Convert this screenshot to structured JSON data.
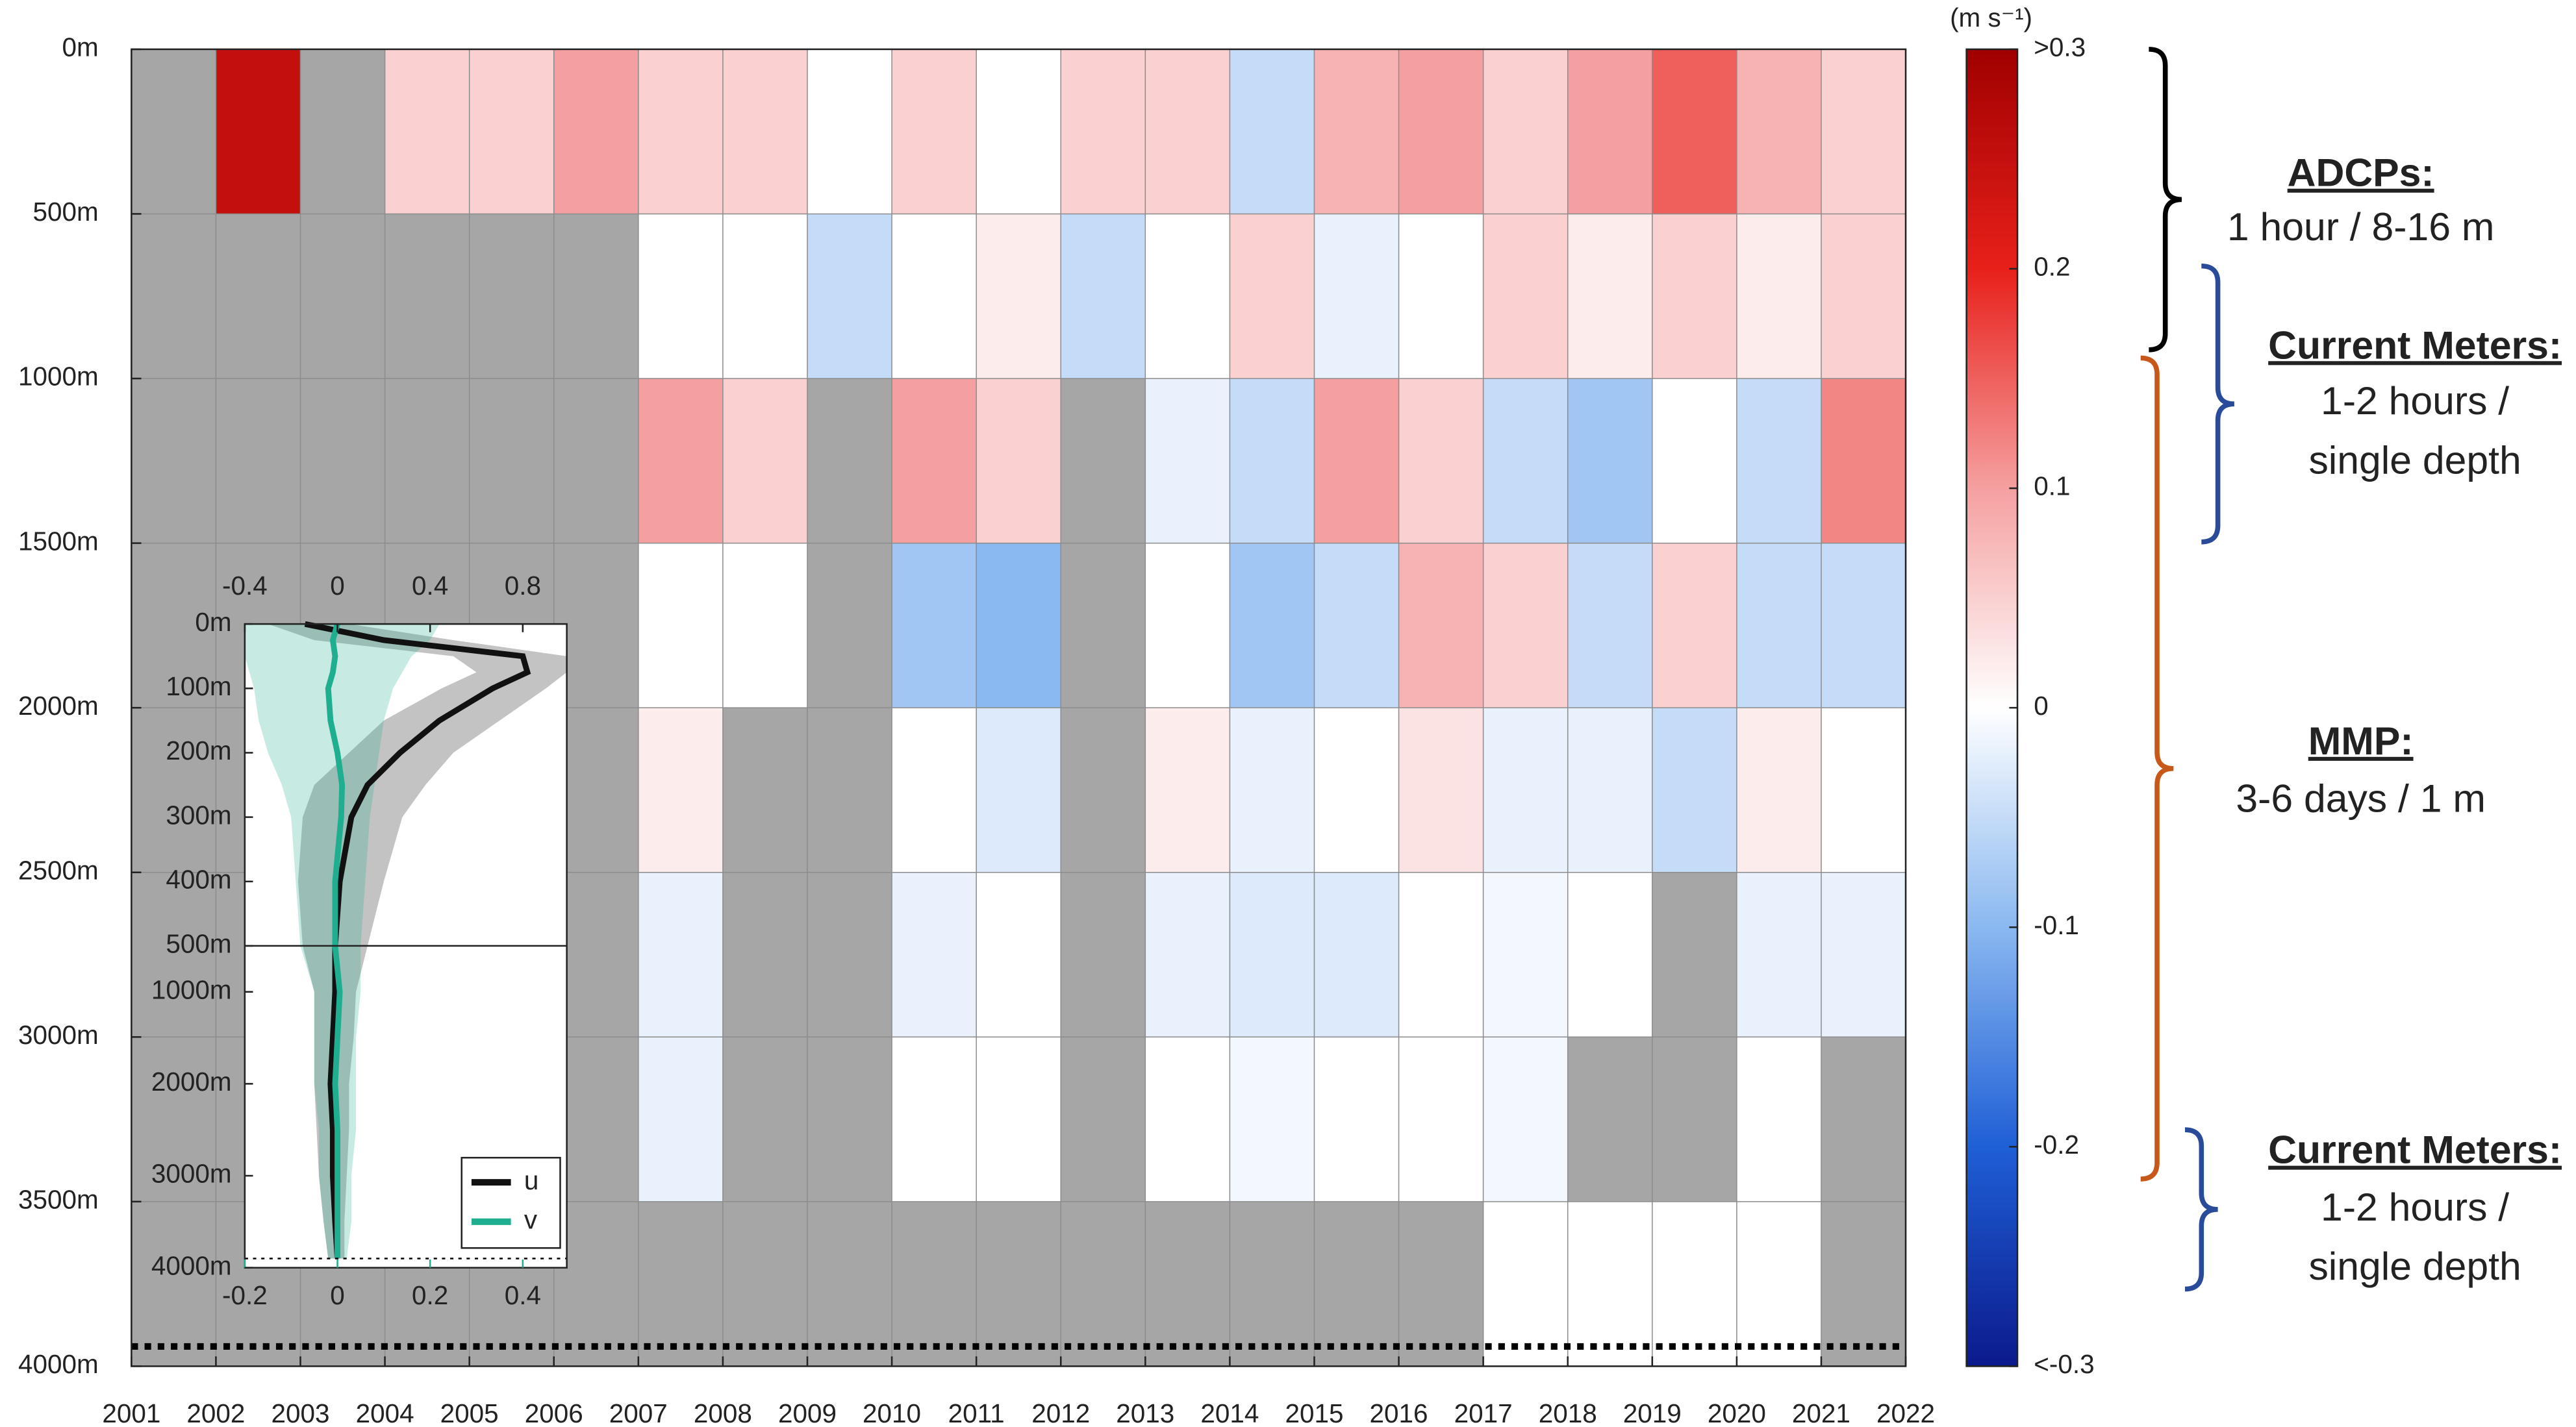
{
  "chart_data": [
    {
      "type": "heatmap",
      "x_edges": [
        2001,
        2002,
        2003,
        2004,
        2005,
        2006,
        2007,
        2008,
        2009,
        2010,
        2011,
        2012,
        2013,
        2014,
        2015,
        2016,
        2017,
        2018,
        2019,
        2020,
        2021,
        2022
      ],
      "y_edges": [
        0,
        500,
        1000,
        1500,
        2000,
        2500,
        3000,
        3500,
        4000
      ],
      "values": [
        [
          null,
          0.25,
          null,
          0.05,
          0.05,
          0.1,
          0.05,
          0.05,
          0,
          0.05,
          0,
          0.05,
          0.05,
          -0.05,
          0.08,
          0.1,
          0.05,
          0.1,
          0.15,
          0.08,
          0.05
        ],
        [
          null,
          null,
          null,
          null,
          null,
          null,
          0,
          0,
          -0.05,
          0,
          0.02,
          -0.05,
          0,
          0.05,
          -0.02,
          0,
          0.05,
          0.02,
          0.05,
          0.02,
          0.05
        ],
        [
          null,
          null,
          null,
          null,
          null,
          null,
          0.1,
          0.05,
          null,
          0.1,
          0.05,
          null,
          -0.02,
          -0.05,
          0.1,
          0.05,
          -0.05,
          -0.08,
          0,
          -0.05,
          0.12
        ],
        [
          null,
          null,
          null,
          null,
          null,
          null,
          0,
          0,
          null,
          -0.08,
          -0.1,
          null,
          0,
          -0.08,
          -0.05,
          0.08,
          0.05,
          -0.05,
          0.05,
          -0.05,
          -0.05
        ],
        [
          null,
          null,
          null,
          null,
          null,
          null,
          0.02,
          null,
          null,
          0,
          -0.03,
          null,
          0.02,
          -0.02,
          0,
          0.03,
          -0.02,
          -0.02,
          -0.05,
          0.02,
          0
        ],
        [
          null,
          null,
          null,
          null,
          null,
          null,
          -0.02,
          null,
          null,
          -0.02,
          0,
          null,
          -0.02,
          -0.03,
          -0.03,
          0,
          -0.01,
          0,
          null,
          -0.02,
          -0.02
        ],
        [
          null,
          null,
          null,
          null,
          null,
          null,
          -0.02,
          null,
          null,
          0,
          0,
          null,
          0,
          -0.01,
          0,
          0,
          -0.01,
          null,
          null,
          0,
          null
        ],
        [
          null,
          null,
          null,
          null,
          null,
          null,
          null,
          null,
          null,
          null,
          null,
          null,
          null,
          null,
          null,
          null,
          0,
          0,
          0,
          0,
          null
        ]
      ],
      "xlim": [
        2001,
        2022
      ],
      "xticks": [
        2001,
        2002,
        2003,
        2004,
        2005,
        2006,
        2007,
        2008,
        2009,
        2010,
        2011,
        2012,
        2013,
        2014,
        2015,
        2016,
        2017,
        2018,
        2019,
        2020,
        2021,
        2022
      ],
      "ylim": [
        4000,
        0
      ],
      "yticks": [
        {
          "value": 0,
          "label": "0m"
        },
        {
          "value": 500,
          "label": "500m"
        },
        {
          "value": 1000,
          "label": "1000m"
        },
        {
          "value": 1500,
          "label": "1500m"
        },
        {
          "value": 2000,
          "label": "2000m"
        },
        {
          "value": 2500,
          "label": "2500m"
        },
        {
          "value": 3000,
          "label": "3000m"
        },
        {
          "value": 3500,
          "label": "3500m"
        },
        {
          "value": 4000,
          "label": "4000m"
        }
      ],
      "grid": true,
      "missing_color": "#a6a6a6",
      "bottom_line_depth": 3940,
      "colorbar": {
        "label": "(m s⁻¹)",
        "clim": [
          -0.3,
          0.3
        ],
        "colormap": [
          "#0b1a8c",
          "#1f5fd6",
          "#8ab8f0",
          "#ffffff",
          "#f5a0a0",
          "#e8201a",
          "#a00000"
        ],
        "ticks": [
          {
            "value": 0.3,
            "label": ">0.3"
          },
          0.2,
          0.1,
          0,
          -0.1,
          -0.2,
          {
            "value": -0.3,
            "label": "<-0.3"
          }
        ]
      },
      "annotations": [
        {
          "label": "ADCPs:",
          "lines": [
            "1 hour / 8-16 m"
          ],
          "color": "#000000"
        },
        {
          "label": "Current Meters:",
          "lines": [
            "1-2 hours /",
            "single depth"
          ],
          "color": "#2a4a9a"
        },
        {
          "label": "MMP:",
          "lines": [
            "3-6 days / 1 m"
          ],
          "color": "#c8581a"
        },
        {
          "label": "Current Meters:",
          "lines": [
            "1-2 hours /",
            "single depth"
          ],
          "color": "#2a4a9a"
        }
      ]
    },
    {
      "type": "line",
      "y": [
        0,
        25,
        50,
        75,
        100,
        150,
        200,
        250,
        300,
        400,
        500,
        1000,
        1500,
        2000,
        2500,
        3000,
        3500,
        3900
      ],
      "series": [
        {
          "name": "u",
          "color": "#111111",
          "values": [
            -0.14,
            0.2,
            0.8,
            0.82,
            0.67,
            0.44,
            0.27,
            0.13,
            0.06,
            0.01,
            -0.01,
            -0.01,
            -0.02,
            -0.03,
            -0.02,
            -0.02,
            -0.01,
            0
          ],
          "lower": [
            -0.3,
            -0.1,
            0.5,
            0.6,
            0.45,
            0.2,
            0.05,
            -0.1,
            -0.15,
            -0.17,
            -0.15,
            -0.1,
            -0.1,
            -0.1,
            -0.09,
            -0.08,
            -0.06,
            -0.04
          ],
          "upper": [
            0.05,
            0.5,
            0.99,
            0.99,
            0.9,
            0.7,
            0.5,
            0.38,
            0.28,
            0.2,
            0.13,
            0.08,
            0.07,
            0.05,
            0.05,
            0.04,
            0.03,
            0.03
          ]
        },
        {
          "name": "v",
          "color": "#1fae8f",
          "axis": "x2",
          "values": [
            0,
            -0.01,
            -0.005,
            -0.01,
            -0.02,
            -0.015,
            0,
            0.01,
            0.008,
            -0.005,
            -0.005,
            0.005,
            0,
            -0.005,
            0,
            0,
            0,
            0
          ],
          "lower": [
            -0.2,
            -0.2,
            -0.2,
            -0.19,
            -0.18,
            -0.17,
            -0.15,
            -0.12,
            -0.1,
            -0.09,
            -0.08,
            -0.05,
            -0.05,
            -0.05,
            -0.04,
            -0.04,
            -0.03,
            -0.02
          ],
          "upper": [
            0.22,
            0.2,
            0.16,
            0.14,
            0.12,
            0.1,
            0.09,
            0.08,
            0.07,
            0.06,
            0.05,
            0.05,
            0.04,
            0.04,
            0.04,
            0.03,
            0.03,
            0.02
          ]
        }
      ],
      "xlim": [
        -0.4,
        0.99
      ],
      "xticks": [
        -0.4,
        0,
        0.4,
        0.8
      ],
      "x2lim": [
        -0.2,
        0.495
      ],
      "x2ticks": [
        -0.2,
        0,
        0.2,
        0.4
      ],
      "ylim": [
        4000,
        0
      ],
      "ybreak": 500,
      "yticks": [
        {
          "value": 0,
          "label": "0m"
        },
        {
          "value": 100,
          "label": "100m"
        },
        {
          "value": 200,
          "label": "200m"
        },
        {
          "value": 300,
          "label": "300m"
        },
        {
          "value": 400,
          "label": "400m"
        },
        {
          "value": 500,
          "label": "500m"
        },
        {
          "value": 1000,
          "label": "1000m"
        },
        {
          "value": 2000,
          "label": "2000m"
        },
        {
          "value": 3000,
          "label": "3000m"
        },
        {
          "value": 4000,
          "label": "4000m"
        }
      ],
      "bottom_line_depth": 3900,
      "legend": "lower right"
    }
  ]
}
